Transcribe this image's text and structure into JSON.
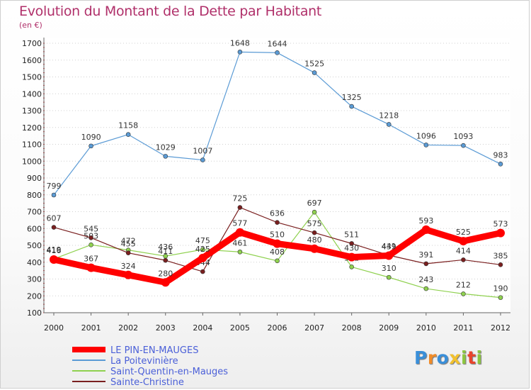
{
  "page": {
    "title": "Evolution du Montant de la Dette par Habitant",
    "subtitle": "(en €)"
  },
  "chart_data": {
    "type": "line",
    "title": "Evolution du Montant de la Dette par Habitant",
    "subtitle": "(en €)",
    "xlabel": "",
    "ylabel": "",
    "x": [
      "2000",
      "2001",
      "2002",
      "2003",
      "2004",
      "2005",
      "2006",
      "2007",
      "2008",
      "2009",
      "2010",
      "2011",
      "2012"
    ],
    "ylim": [
      100,
      1700
    ],
    "yticks": [
      100,
      200,
      300,
      400,
      500,
      600,
      700,
      800,
      900,
      1000,
      1100,
      1200,
      1300,
      1400,
      1500,
      1600,
      1700
    ],
    "grid": "horizontal dotted",
    "legend_position": "bottom-left",
    "series": [
      {
        "name": "LE PIN-EN-MAUGES",
        "color": "#ff0000",
        "values": [
          416,
          367,
          324,
          280,
          425,
          577,
          510,
          480,
          430,
          439,
          593,
          525,
          573
        ]
      },
      {
        "name": "La Poitevinière",
        "color": "#5b9bd5",
        "values": [
          799,
          1090,
          1158,
          1029,
          1007,
          1648,
          1644,
          1525,
          1325,
          1218,
          1096,
          1093,
          983
        ]
      },
      {
        "name": "Saint-Quentin-en-Mauges",
        "color": "#8fd14f",
        "values": [
          419,
          503,
          472,
          436,
          475,
          461,
          408,
          697,
          372,
          310,
          243,
          212,
          190
        ]
      },
      {
        "name": "Sainte-Christine",
        "color": "#7a1f1f",
        "values": [
          607,
          545,
          455,
          411,
          344,
          725,
          636,
          575,
          511,
          441,
          391,
          414,
          385
        ]
      }
    ]
  },
  "logo": {
    "letters": [
      "P",
      "r",
      "o",
      "x",
      "i",
      "t",
      "i"
    ],
    "colors": [
      "#3a8fd9",
      "#f28c28",
      "#3a8fd9",
      "#f2c12e",
      "#8cc63f",
      "#e8452c",
      "#8cc63f"
    ]
  }
}
